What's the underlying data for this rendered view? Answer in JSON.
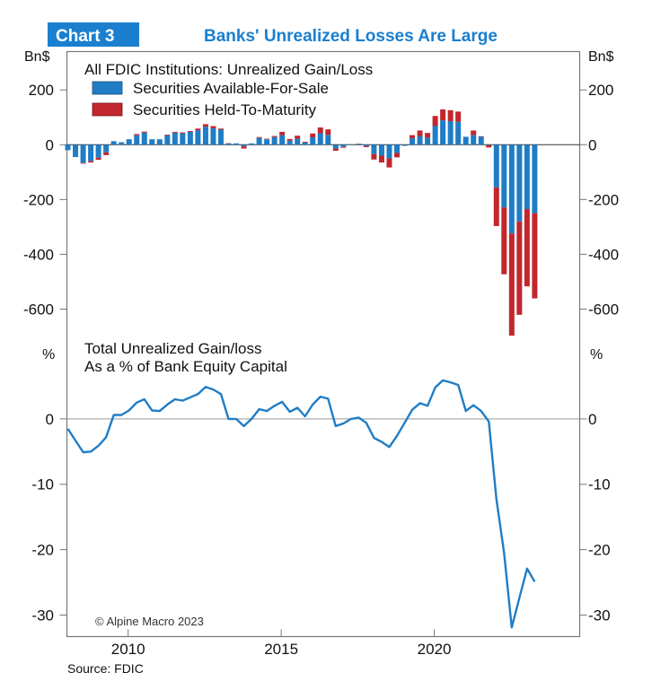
{
  "header": {
    "chart_number": "Chart 3",
    "title": "Banks' Unrealized Losses Are Large"
  },
  "colors": {
    "brand_blue": "#1a7fcf",
    "afs": "#1f7dc6",
    "htm": "#c1272d",
    "line": "#1f7dc6"
  },
  "footer": {
    "copyright": "© Alpine Macro 2023",
    "source": "Source: FDIC"
  },
  "chart_data": [
    {
      "type": "bar",
      "stacked": true,
      "title": "All FDIC Institutions: Unrealized Gain/Loss",
      "ylabel_left": "Bn$",
      "ylabel_right": "Bn$",
      "ylim": [
        -700,
        340
      ],
      "yticks": [
        200,
        0,
        -200,
        -400,
        -600
      ],
      "ytick_labels": [
        "200",
        "0",
        "-200",
        "-400",
        "-600"
      ],
      "grid": false,
      "legend_position": "top-left",
      "x_start": "2008Q1",
      "x_end": "2023Q2",
      "frequency": "quarterly",
      "series": [
        {
          "name": "Securities Available-For-Sale",
          "color": "#1f7dc6",
          "values": [
            -20,
            -45,
            -67,
            -60,
            -47,
            -28,
            13,
            9,
            20,
            35,
            44,
            20,
            20,
            35,
            44,
            42,
            47,
            53,
            66,
            60,
            55,
            5,
            5,
            -6,
            5,
            25,
            20,
            28,
            35,
            15,
            22,
            8,
            27,
            42,
            36,
            -14,
            -8,
            2,
            3,
            -5,
            -34,
            -40,
            -50,
            -30,
            -4,
            24,
            32,
            26,
            68,
            89,
            86,
            84,
            29,
            35,
            29,
            -2,
            -156,
            -229,
            -324,
            -280,
            -235,
            -250
          ]
        },
        {
          "name": "Securities Held-To-Maturity",
          "color": "#c1272d",
          "values": [
            0,
            0,
            -2,
            -5,
            -8,
            -10,
            0,
            0,
            0,
            4,
            4,
            0,
            0,
            2,
            3,
            3,
            3,
            6,
            9,
            8,
            4,
            1,
            0,
            -8,
            0,
            3,
            2,
            4,
            12,
            6,
            11,
            3,
            14,
            21,
            20,
            -8,
            -3,
            0,
            1,
            -4,
            -20,
            -25,
            -33,
            -16,
            0,
            11,
            20,
            17,
            37,
            40,
            40,
            37,
            0,
            17,
            2,
            -8,
            -141,
            -244,
            -373,
            -341,
            -282,
            -311
          ]
        }
      ]
    },
    {
      "type": "line",
      "title": "Total Unrealized Gain/loss",
      "subtitle": "As a % of Bank Equity Capital",
      "ylabel_left": "%",
      "ylabel_right": "%",
      "ylim": [
        -33.3,
        12.2
      ],
      "yticks": [
        0,
        -10,
        -20,
        -30
      ],
      "ytick_labels": [
        "0",
        "-10",
        "-20",
        "-30"
      ],
      "grid": false,
      "xlim": [
        2008,
        2024.75
      ],
      "xticks": [
        2010,
        2015,
        2020
      ],
      "xtick_labels": [
        "2010",
        "2015",
        "2020"
      ],
      "x_start": "2008Q1",
      "frequency": "quarterly",
      "series": [
        {
          "color": "#1f7dc6",
          "values": [
            -1.5,
            -3.3,
            -5.1,
            -5.0,
            -4.1,
            -2.8,
            0.6,
            0.6,
            1.3,
            2.5,
            3.0,
            1.3,
            1.2,
            2.2,
            3.0,
            2.8,
            3.3,
            3.8,
            4.9,
            4.5,
            3.8,
            0.0,
            0.0,
            -1.1,
            0.0,
            1.5,
            1.2,
            2.0,
            2.6,
            1.1,
            1.7,
            0.4,
            2.2,
            3.4,
            3.1,
            -1.1,
            -0.7,
            0.0,
            0.2,
            -0.6,
            -2.9,
            -3.5,
            -4.3,
            -2.6,
            -0.6,
            1.4,
            2.4,
            2.0,
            4.8,
            5.9,
            5.6,
            5.2,
            1.2,
            2.1,
            1.2,
            -0.4,
            -12.3,
            -20.5,
            -31.9,
            -27.4,
            -22.9,
            -24.9
          ]
        }
      ]
    }
  ]
}
